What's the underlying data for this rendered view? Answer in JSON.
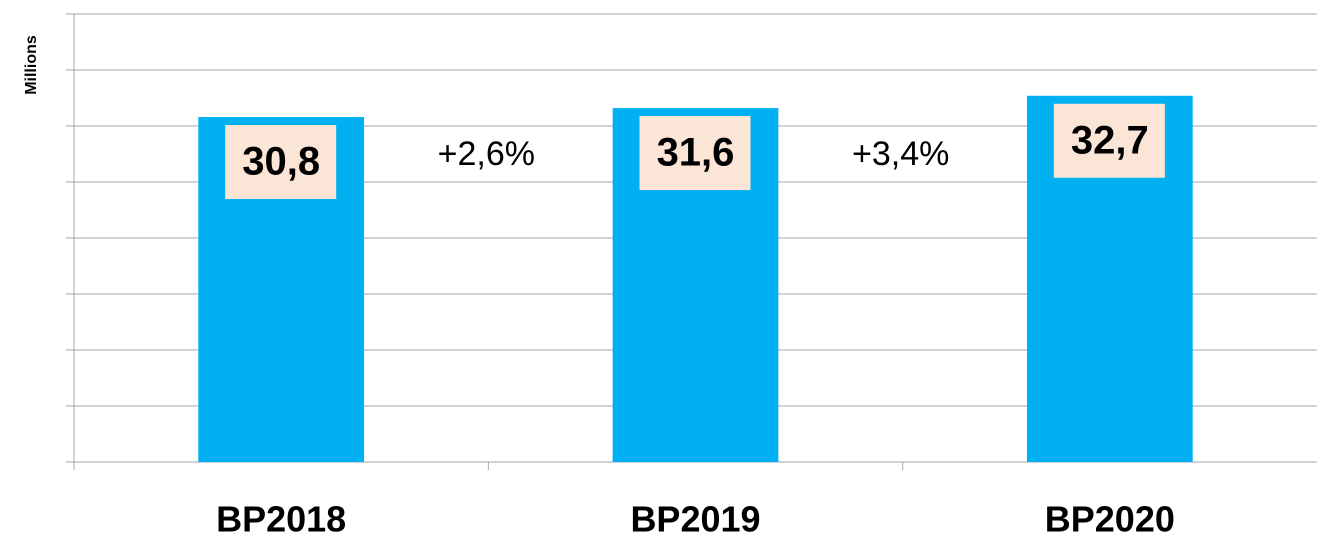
{
  "chart_data": {
    "type": "bar",
    "y_label": "Millions",
    "categories": [
      "BP2018",
      "BP2019",
      "BP2020"
    ],
    "values": [
      30.8,
      31.6,
      32.7
    ],
    "value_labels": [
      "30,8",
      "31,6",
      "32,7"
    ],
    "color": "#00b0f0",
    "label_box_color": "#fbe5d6",
    "ylim": [
      0,
      40
    ],
    "yticks": [
      0,
      5,
      10,
      15,
      20,
      25,
      30,
      35,
      40
    ],
    "grid": true,
    "annotations": [
      "+2,6%",
      "+3,4%"
    ]
  }
}
